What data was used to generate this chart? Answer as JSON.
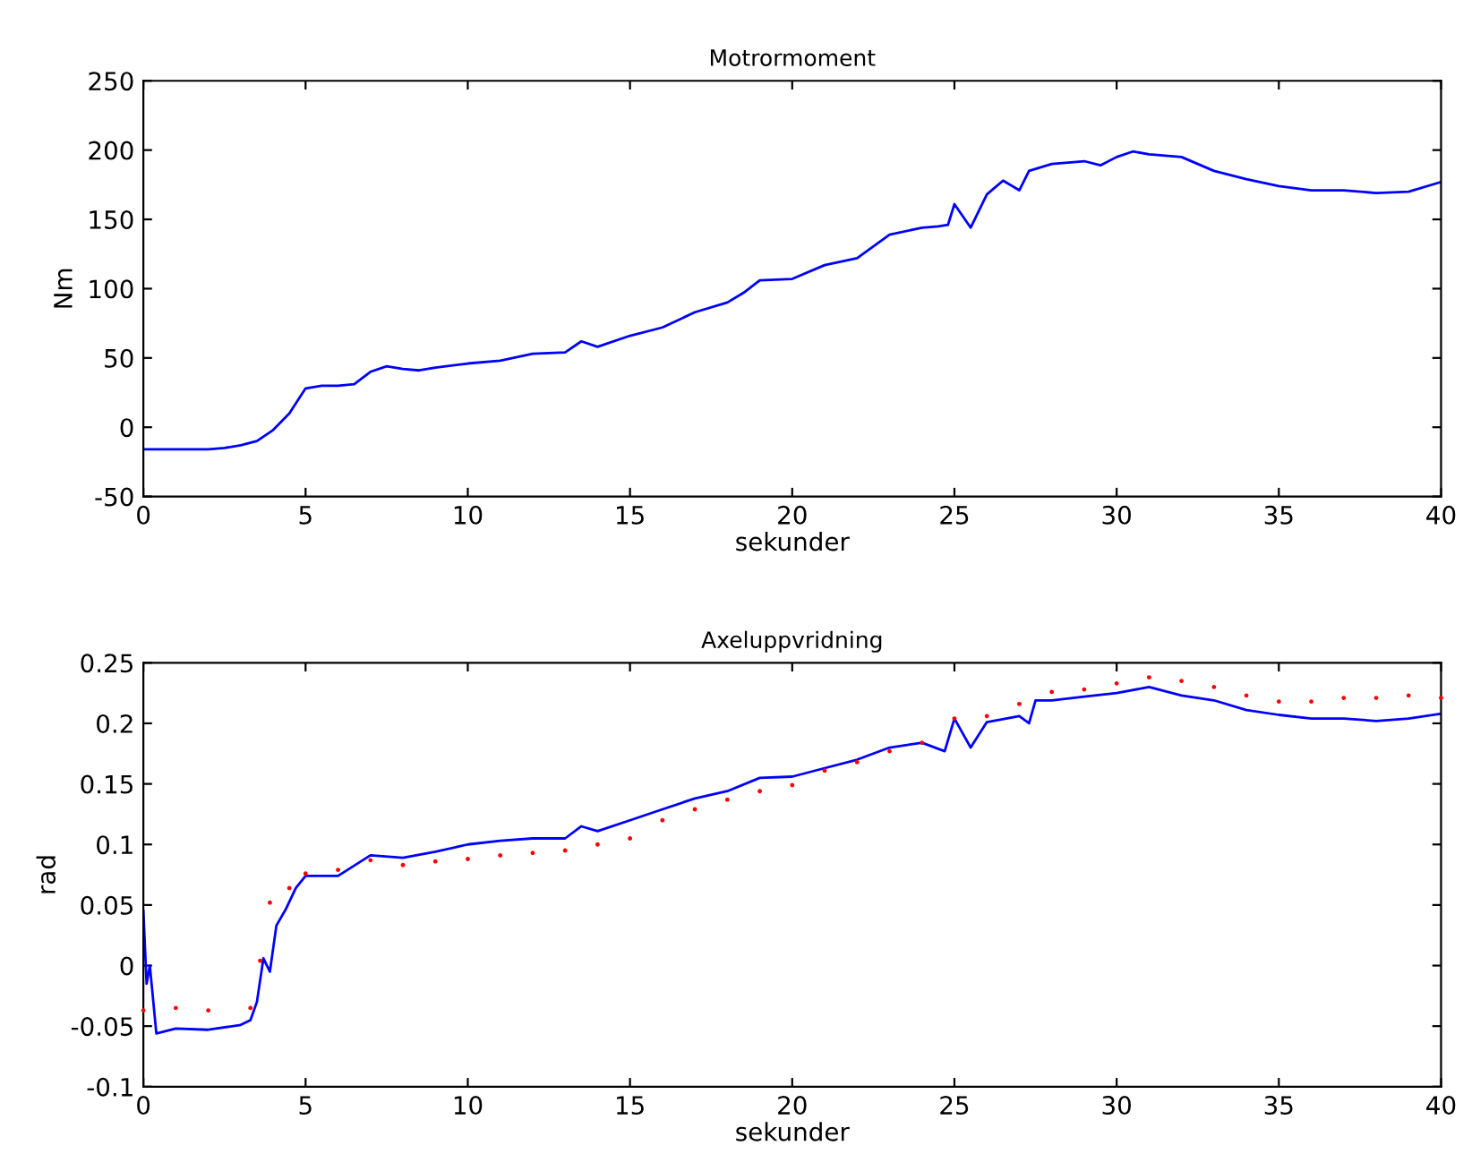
{
  "chart_data": [
    {
      "type": "line",
      "title": "Motrormoment",
      "xlabel": "sekunder",
      "ylabel": "Nm",
      "xlim": [
        0,
        40
      ],
      "ylim": [
        -50,
        250
      ],
      "xticks": [
        0,
        5,
        10,
        15,
        20,
        25,
        30,
        35,
        40
      ],
      "yticks": [
        -50,
        0,
        50,
        100,
        150,
        200,
        250
      ],
      "grid": false,
      "legend": false,
      "series": [
        {
          "color": "#0000ff",
          "x": [
            0,
            1,
            2,
            2.5,
            3,
            3.5,
            4,
            4.5,
            5,
            5.5,
            6,
            6.5,
            7,
            7.5,
            8,
            8.5,
            9,
            10,
            11,
            12,
            13,
            13.5,
            14,
            15,
            16,
            17,
            18,
            18.5,
            19,
            20,
            21,
            22,
            23,
            24,
            24.5,
            24.8,
            25,
            25.5,
            26,
            26.5,
            27,
            27.3,
            28,
            29,
            29.5,
            30,
            30.5,
            31,
            32,
            33,
            34,
            35,
            36,
            37,
            38,
            39,
            40
          ],
          "values": [
            -16,
            -16,
            -16,
            -15,
            -13,
            -10,
            -2,
            10,
            28,
            30,
            30,
            31,
            40,
            44,
            42,
            41,
            43,
            46,
            48,
            53,
            54,
            62,
            58,
            66,
            72,
            83,
            90,
            97,
            106,
            107,
            117,
            122,
            139,
            144,
            145,
            146,
            161,
            144,
            168,
            178,
            171,
            185,
            190,
            192,
            189,
            195,
            199,
            197,
            195,
            185,
            179,
            174,
            171,
            171,
            169,
            170,
            177
          ]
        }
      ]
    },
    {
      "type": "line",
      "title": "Axeluppvridning",
      "xlabel": "sekunder",
      "ylabel": "rad",
      "xlim": [
        0,
        40
      ],
      "ylim": [
        -0.1,
        0.25
      ],
      "xticks": [
        0,
        5,
        10,
        15,
        20,
        25,
        30,
        35,
        40
      ],
      "yticks": [
        -0.1,
        -0.05,
        0,
        0.05,
        0.1,
        0.15,
        0.2,
        0.25
      ],
      "grid": false,
      "legend": false,
      "series": [
        {
          "color": "#ff0000",
          "type": "scatter",
          "marker": "circle",
          "x": [
            0,
            1,
            2,
            3.3,
            3.6,
            3.9,
            4.5,
            5,
            6,
            7,
            8,
            9,
            10,
            11,
            12,
            13,
            14,
            15,
            16,
            17,
            18,
            19,
            20,
            21,
            22,
            23,
            24,
            25,
            26,
            27,
            28,
            29,
            30,
            31,
            32,
            33,
            34,
            35,
            36,
            37,
            38,
            39,
            40
          ],
          "values": [
            -0.037,
            -0.035,
            -0.037,
            -0.035,
            0.004,
            0.052,
            0.064,
            0.076,
            0.079,
            0.087,
            0.083,
            0.086,
            0.088,
            0.091,
            0.093,
            0.095,
            0.1,
            0.105,
            0.12,
            0.129,
            0.137,
            0.144,
            0.149,
            0.161,
            0.168,
            0.177,
            0.184,
            0.204,
            0.206,
            0.216,
            0.226,
            0.228,
            0.233,
            0.238,
            0.235,
            0.23,
            0.223,
            0.218,
            0.218,
            0.221,
            0.221,
            0.223,
            0.221
          ]
        },
        {
          "color": "#0000ff",
          "x": [
            0,
            0.1,
            0.2,
            0.4,
            1,
            2,
            3,
            3.3,
            3.5,
            3.7,
            3.9,
            4.1,
            4.4,
            4.7,
            5,
            6,
            7,
            8,
            9,
            10,
            11,
            12,
            13,
            13.5,
            14,
            15,
            16,
            17,
            18,
            19,
            20,
            21,
            22,
            23,
            24,
            24.7,
            25,
            25.5,
            26,
            27,
            27.3,
            27.5,
            28,
            29,
            30,
            31,
            32,
            33,
            34,
            35,
            36,
            37,
            38,
            39,
            40
          ],
          "values": [
            0.045,
            -0.015,
            0,
            -0.056,
            -0.052,
            -0.053,
            -0.049,
            -0.045,
            -0.03,
            0.006,
            -0.005,
            0.033,
            0.047,
            0.064,
            0.074,
            0.074,
            0.091,
            0.089,
            0.094,
            0.1,
            0.103,
            0.105,
            0.105,
            0.115,
            0.111,
            0.12,
            0.129,
            0.138,
            0.144,
            0.155,
            0.156,
            0.163,
            0.17,
            0.18,
            0.184,
            0.177,
            0.204,
            0.18,
            0.201,
            0.206,
            0.2,
            0.219,
            0.219,
            0.222,
            0.225,
            0.23,
            0.223,
            0.219,
            0.211,
            0.207,
            0.204,
            0.204,
            0.202,
            0.204,
            0.208
          ]
        }
      ]
    }
  ]
}
